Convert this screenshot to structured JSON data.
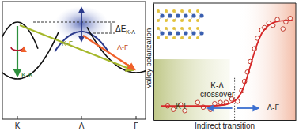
{
  "band_diagram": {
    "k_points": [
      "K",
      "Λ",
      "Γ"
    ],
    "energy_gap_label": "ΔE",
    "energy_gap_subscript": "K-Λ",
    "transitions": [
      {
        "label": "K-K",
        "color": "#2d8f3c"
      },
      {
        "label": "K-Γ",
        "color": "#a5b82a"
      },
      {
        "label": "Λ-Γ",
        "color": "#f0602a"
      }
    ]
  },
  "chart_data": {
    "type": "scatter",
    "x_label": "Indirect transition",
    "y_label": "Valley polarization",
    "xlim": [
      0,
      1
    ],
    "ylim": [
      0,
      1
    ],
    "tick_labels": false,
    "crossover_x": 0.57,
    "annotations": [
      "K-Λ",
      "crossover",
      "K-Γ",
      "Λ-Γ"
    ],
    "series": [
      {
        "type": "scatter",
        "color": "#c0392b",
        "marker": "open-circle",
        "x": [
          0.1,
          0.14,
          0.19,
          0.22,
          0.31,
          0.35,
          0.4,
          0.43,
          0.47,
          0.51,
          0.55,
          0.59,
          0.62,
          0.64,
          0.66,
          0.68,
          0.71,
          0.73,
          0.76,
          0.78,
          0.81,
          0.84,
          0.87,
          0.91,
          0.93,
          0.96
        ],
        "values": [
          0.12,
          0.09,
          0.13,
          0.08,
          0.15,
          0.11,
          0.09,
          0.14,
          0.15,
          0.15,
          0.18,
          0.16,
          0.25,
          0.33,
          0.41,
          0.5,
          0.61,
          0.7,
          0.77,
          0.79,
          0.83,
          0.81,
          0.86,
          0.78,
          0.84,
          0.87
        ]
      },
      {
        "type": "line",
        "color": "#d62728",
        "line_style": "solid",
        "x": [
          0.05,
          0.2,
          0.4,
          0.5,
          0.55,
          0.6,
          0.64,
          0.68,
          0.72,
          0.76,
          0.8,
          0.86,
          0.93,
          0.98
        ],
        "values": [
          0.12,
          0.12,
          0.12,
          0.13,
          0.15,
          0.2,
          0.3,
          0.46,
          0.62,
          0.74,
          0.8,
          0.84,
          0.85,
          0.85
        ]
      }
    ]
  }
}
